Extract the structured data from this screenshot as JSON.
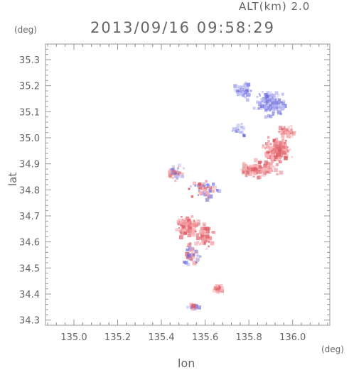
{
  "header": {
    "altitude_label": "ALT(km) 2.0",
    "timestamp": "2013/09/16 09:58:29",
    "y_unit": "(deg)",
    "x_unit": "(deg)"
  },
  "chart_data": {
    "type": "scatter",
    "title": "2013/09/16 09:58:29",
    "xlabel": "lon",
    "ylabel": "lat",
    "xlim": [
      134.87,
      136.17
    ],
    "ylim": [
      34.28,
      35.36
    ],
    "xticks": [
      "135.0",
      "135.2",
      "135.4",
      "135.6",
      "135.8",
      "136.0"
    ],
    "yticks": [
      "34.3",
      "34.4",
      "34.5",
      "34.6",
      "34.7",
      "34.8",
      "34.9",
      "35.0",
      "35.1",
      "35.2",
      "35.3"
    ],
    "grid": false,
    "colors": {
      "positive": "#e0505a",
      "negative": "#6a6ae0",
      "axis": "#999999",
      "text": "#666666"
    },
    "clusters": [
      {
        "lon": 135.9,
        "lat": 35.13,
        "sign": "negative",
        "spread_lon": 0.08,
        "spread_lat": 0.06,
        "density": 140
      },
      {
        "lon": 135.78,
        "lat": 35.18,
        "sign": "negative",
        "spread_lon": 0.06,
        "spread_lat": 0.04,
        "density": 50
      },
      {
        "lon": 135.93,
        "lat": 34.95,
        "sign": "positive",
        "spread_lon": 0.08,
        "spread_lat": 0.06,
        "density": 150
      },
      {
        "lon": 135.85,
        "lat": 34.88,
        "sign": "positive",
        "spread_lon": 0.12,
        "spread_lat": 0.04,
        "density": 110
      },
      {
        "lon": 135.97,
        "lat": 35.03,
        "sign": "positive",
        "spread_lon": 0.05,
        "spread_lat": 0.04,
        "density": 40
      },
      {
        "lon": 135.52,
        "lat": 34.66,
        "sign": "positive",
        "spread_lon": 0.06,
        "spread_lat": 0.05,
        "density": 130
      },
      {
        "lon": 135.6,
        "lat": 34.62,
        "sign": "positive",
        "spread_lon": 0.05,
        "spread_lat": 0.06,
        "density": 70
      },
      {
        "lon": 135.66,
        "lat": 34.42,
        "sign": "positive",
        "spread_lon": 0.025,
        "spread_lat": 0.02,
        "density": 30
      },
      {
        "lon": 135.47,
        "lat": 34.87,
        "sign": "mixed",
        "spread_lon": 0.05,
        "spread_lat": 0.04,
        "density": 40
      },
      {
        "lon": 135.6,
        "lat": 34.8,
        "sign": "mixed",
        "spread_lon": 0.08,
        "spread_lat": 0.05,
        "density": 70
      },
      {
        "lon": 135.54,
        "lat": 34.55,
        "sign": "mixed",
        "spread_lon": 0.05,
        "spread_lat": 0.05,
        "density": 40
      },
      {
        "lon": 135.55,
        "lat": 34.35,
        "sign": "mixed",
        "spread_lon": 0.05,
        "spread_lat": 0.015,
        "density": 20
      },
      {
        "lon": 135.76,
        "lat": 35.03,
        "sign": "negative",
        "spread_lon": 0.04,
        "spread_lat": 0.03,
        "density": 20
      }
    ]
  }
}
